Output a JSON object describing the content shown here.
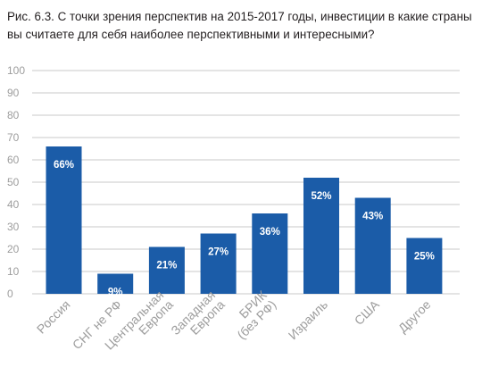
{
  "figure": {
    "title": "Рис. 6.3. С точки зрения перспектив на 2015-2017 годы, инвестиции в какие страны вы считаете для себя наиболее перспективными и интересными?"
  },
  "colors": {
    "bar": "#1b5ca8",
    "grid": "#c8c8c8",
    "axis_text": "#9d9d9d",
    "label_text": "#ffffff"
  },
  "chart_data": {
    "type": "bar",
    "title": "Рис. 6.3. С точки зрения перспектив на 2015-2017 годы, инвестиции в какие страны вы считаете для себя наиболее перспективными и интересными?",
    "categories": [
      [
        "Россия"
      ],
      [
        "СНГ не РФ"
      ],
      [
        "Центральная",
        "Европа"
      ],
      [
        "Западная",
        "Европа"
      ],
      [
        "БРИК",
        "(без РФ)"
      ],
      [
        "Израиль"
      ],
      [
        "США"
      ],
      [
        "Другое"
      ]
    ],
    "values": [
      66,
      9,
      21,
      27,
      36,
      52,
      43,
      25
    ],
    "data_labels": [
      "66%",
      "9%",
      "21%",
      "27%",
      "36%",
      "52%",
      "43%",
      "25%"
    ],
    "yticks": [
      0,
      10,
      20,
      30,
      40,
      50,
      60,
      70,
      80,
      90,
      100
    ],
    "ylim": [
      0,
      100
    ],
    "xlabel": "",
    "ylabel": "",
    "grid": true,
    "legend": "none"
  }
}
